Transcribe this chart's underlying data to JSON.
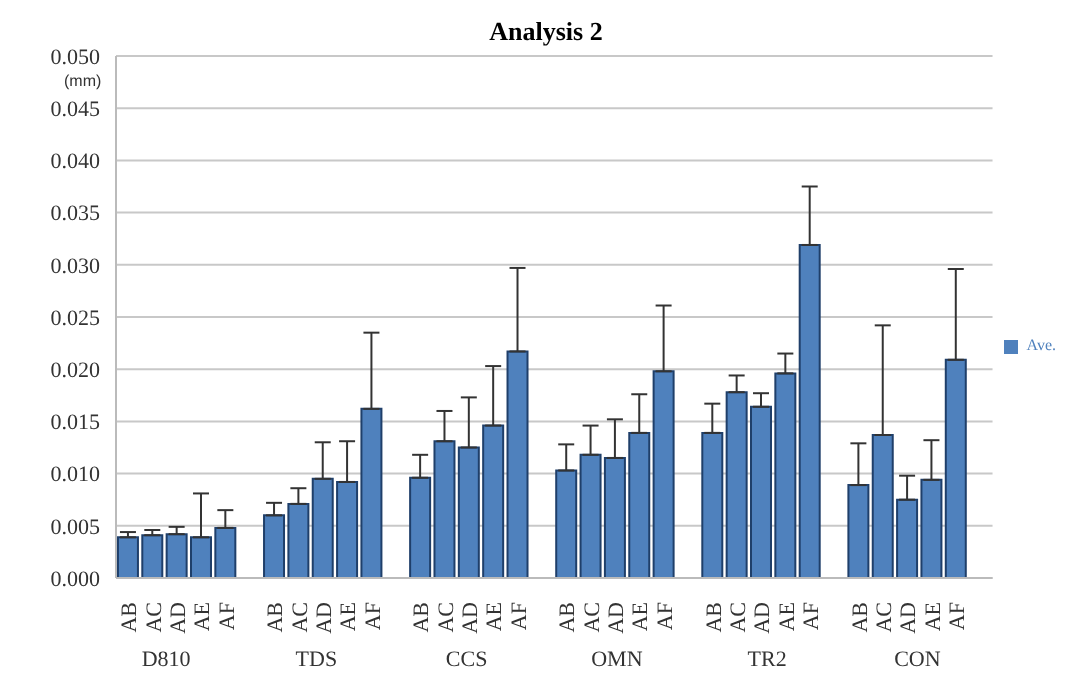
{
  "chart_data": {
    "type": "bar",
    "title": "Analysis 2",
    "ylabel": "(mm)",
    "categories": [
      "AB",
      "AC",
      "AD",
      "AE",
      "AF",
      null,
      "AB",
      "AC",
      "AD",
      "AE",
      "AF",
      null,
      "AB",
      "AC",
      "AD",
      "AE",
      "AF",
      null,
      "AB",
      "AC",
      "AD",
      "AE",
      "AF",
      null,
      "AB",
      "AC",
      "AD",
      "AE",
      "AF",
      null,
      "AB",
      "AC",
      "AD",
      "AE",
      "AF",
      null
    ],
    "annotations": [
      "D810",
      "TDS",
      "CCS",
      "OMN",
      "TR2",
      "CON"
    ],
    "series": [
      {
        "name": "Ave.",
        "color": "#4f81bd",
        "values": [
          0.0039,
          0.0041,
          0.0042,
          0.0039,
          0.0048,
          null,
          0.006,
          0.0071,
          0.0095,
          0.0092,
          0.0162,
          null,
          0.0096,
          0.0131,
          0.0125,
          0.0146,
          0.0217,
          null,
          0.0103,
          0.0118,
          0.0115,
          0.0139,
          0.0198,
          null,
          0.0139,
          0.0178,
          0.0164,
          0.0196,
          0.0319,
          null,
          0.0089,
          0.0137,
          0.0075,
          0.0094,
          0.0209,
          null
        ],
        "errors": [
          [
            0.0039,
            0.0044
          ],
          [
            0.0041,
            0.0046
          ],
          [
            0.0042,
            0.0049
          ],
          [
            0.0039,
            0.0081
          ],
          [
            0.0048,
            0.0065
          ],
          null,
          [
            0.006,
            0.0072
          ],
          [
            0.0071,
            0.0086
          ],
          [
            0.0095,
            0.013
          ],
          [
            0.0092,
            0.0131
          ],
          [
            0.0162,
            0.0235
          ],
          null,
          [
            0.0096,
            0.0118
          ],
          [
            0.0131,
            0.016
          ],
          [
            0.0125,
            0.0173
          ],
          [
            0.0146,
            0.0203
          ],
          [
            0.0217,
            0.0297
          ],
          null,
          [
            0.0103,
            0.0128
          ],
          [
            0.0118,
            0.0146
          ],
          [
            0.0115,
            0.0152
          ],
          [
            0.0139,
            0.0176
          ],
          [
            0.0198,
            0.0261
          ],
          null,
          [
            0.0139,
            0.0167
          ],
          [
            0.0178,
            0.0194
          ],
          [
            0.0164,
            0.0177
          ],
          [
            0.0196,
            0.0215
          ],
          [
            0.0319,
            0.0375
          ],
          null,
          [
            0.0089,
            0.0129
          ],
          [
            0.0137,
            0.0242
          ],
          [
            0.0075,
            0.0098
          ],
          [
            0.0094,
            0.0132
          ],
          [
            0.0209,
            0.0296
          ],
          null
        ]
      }
    ],
    "ylim": [
      0,
      0.05
    ],
    "yticks": [
      {
        "value": 0,
        "label": "0.000"
      },
      {
        "value": 0.005,
        "label": "0.005"
      },
      {
        "value": 0.01,
        "label": "0.010"
      },
      {
        "value": 0.015,
        "label": "0.015"
      },
      {
        "value": 0.02,
        "label": "0.020"
      },
      {
        "value": 0.025,
        "label": "0.025"
      },
      {
        "value": 0.03,
        "label": "0.030"
      },
      {
        "value": 0.035,
        "label": "0.035"
      },
      {
        "value": 0.04,
        "label": "0.040"
      },
      {
        "value": 0.045,
        "label": "0.045"
      },
      {
        "value": 0.05,
        "label": "0.050"
      }
    ],
    "grid": "y",
    "legend": "right"
  }
}
